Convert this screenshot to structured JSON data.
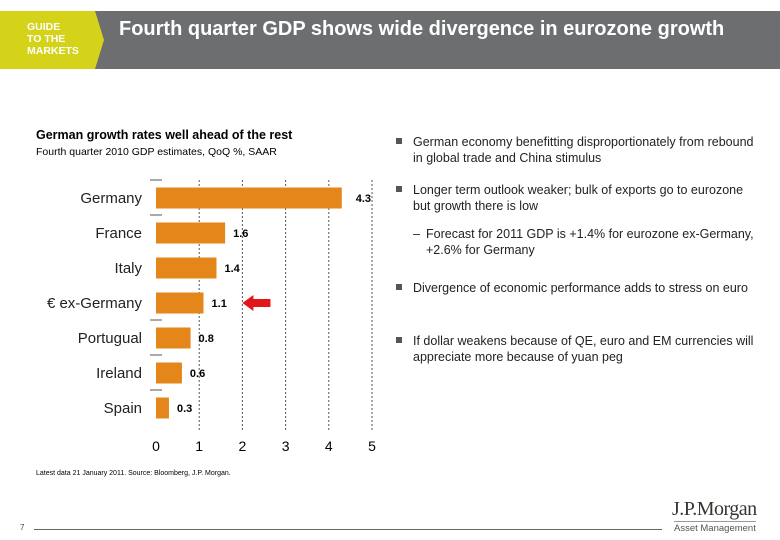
{
  "header": {
    "logo_text": [
      "GUIDE",
      "TO THE",
      "MARKETS"
    ],
    "title": "Fourth quarter GDP shows wide divergence in eurozone growth"
  },
  "chart_data": {
    "type": "bar",
    "orientation": "horizontal",
    "title": "German growth rates well ahead of the rest",
    "subtitle": "Fourth quarter 2010 GDP estimates, QoQ %, SAAR",
    "categories": [
      "Germany",
      "France",
      "Italy",
      "€ ex-Germany",
      "Portugual",
      "Ireland",
      "Spain"
    ],
    "values": [
      4.3,
      1.6,
      1.4,
      1.1,
      0.8,
      0.6,
      0.3
    ],
    "data_labels": [
      "4.3",
      "1.6",
      "1.4",
      "1.1",
      "0.8",
      "0.6",
      "0.3"
    ],
    "xlim": [
      0,
      5
    ],
    "xticks": [
      "0",
      "1",
      "2",
      "3",
      "4",
      "5"
    ],
    "grid": "vertical dotted",
    "highlight": "€ ex-Germany",
    "colors": {
      "bar": "#e5861b",
      "arrow": "#e3171b"
    }
  },
  "bullets": [
    {
      "text": "German economy benefitting disproportionately from rebound in global trade and China stimulus",
      "level": 1
    },
    {
      "text": "Longer term outlook weaker; bulk of exports go to eurozone but growth there is low",
      "level": 1
    },
    {
      "text": "Forecast for 2011 GDP is +1.4% for eurozone ex-Germany, +2.6% for Germany",
      "level": 2
    },
    {
      "text": "Divergence of economic performance adds to stress on euro",
      "level": 1
    },
    {
      "text": "If dollar weakens because of QE, euro and EM currencies will appreciate more because of yuan peg",
      "level": 1
    }
  ],
  "footer": {
    "source": "Latest data 21 January 2011. Source:  Bloomberg, J.P. Morgan.",
    "page": "7",
    "brand": "J.P.Morgan",
    "brand_sub": "Asset Management"
  }
}
